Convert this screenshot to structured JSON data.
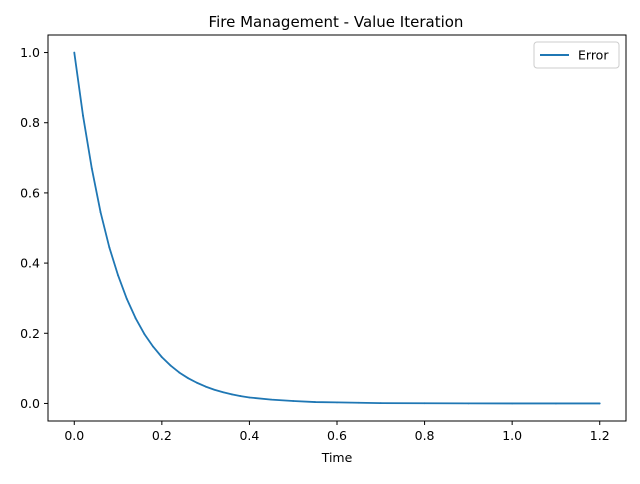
{
  "chart_data": {
    "type": "line",
    "title": "Fire Management - Value Iteration",
    "xlabel": "Time",
    "ylabel": "",
    "xlim": [
      -0.06,
      1.26
    ],
    "ylim": [
      -0.05,
      1.05
    ],
    "xticks": [
      0.0,
      0.2,
      0.4,
      0.6,
      0.8,
      1.0,
      1.2
    ],
    "xtick_labels": [
      "0.0",
      "0.2",
      "0.4",
      "0.6",
      "0.8",
      "1.0",
      "1.2"
    ],
    "yticks": [
      0.0,
      0.2,
      0.4,
      0.6,
      0.8,
      1.0
    ],
    "ytick_labels": [
      "0.0",
      "0.2",
      "0.4",
      "0.6",
      "0.8",
      "1.0"
    ],
    "grid": false,
    "legend_position": "upper right",
    "series": [
      {
        "name": "Error",
        "color": "#1f77b4",
        "x": [
          0.0,
          0.02,
          0.04,
          0.06,
          0.08,
          0.1,
          0.12,
          0.14,
          0.16,
          0.18,
          0.2,
          0.22,
          0.24,
          0.26,
          0.28,
          0.3,
          0.32,
          0.34,
          0.36,
          0.38,
          0.4,
          0.45,
          0.5,
          0.55,
          0.6,
          0.65,
          0.7,
          0.8,
          0.9,
          1.0,
          1.1,
          1.2
        ],
        "values": [
          1.0,
          0.82,
          0.67,
          0.545,
          0.445,
          0.365,
          0.298,
          0.243,
          0.198,
          0.162,
          0.132,
          0.108,
          0.088,
          0.072,
          0.059,
          0.048,
          0.039,
          0.032,
          0.026,
          0.021,
          0.017,
          0.011,
          0.007,
          0.004,
          0.003,
          0.002,
          0.001,
          0.0005,
          0.0002,
          0.0001,
          0.0,
          0.0
        ]
      }
    ]
  }
}
